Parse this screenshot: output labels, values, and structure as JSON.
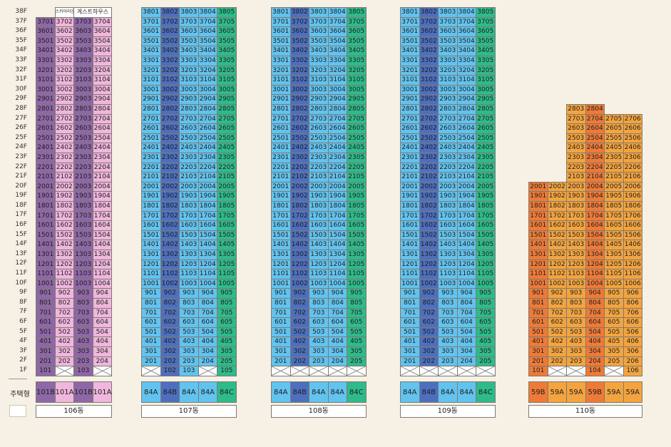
{
  "floor_labels": [
    "38F",
    "37F",
    "36F",
    "35F",
    "34F",
    "33F",
    "32F",
    "31F",
    "30F",
    "29F",
    "28F",
    "27F",
    "26F",
    "25F",
    "24F",
    "23F",
    "22F",
    "21F",
    "20F",
    "19F",
    "18F",
    "17F",
    "16F",
    "15F",
    "14F",
    "13F",
    "12F",
    "11F",
    "10F",
    "9F",
    "8F",
    "7F",
    "6F",
    "5F",
    "4F",
    "3F",
    "2F",
    "1F"
  ],
  "unit_type_label": "주택형",
  "colors": {
    "101B": "#8e67a6",
    "101A": "#f0b6dd",
    "84A": "#62c3ef",
    "84B": "#4d6fbe",
    "84C": "#2dbb8a",
    "59A": "#f3a43f",
    "59B": "#ee7a37",
    "empty": "#ffffff"
  },
  "buildings": [
    {
      "name": "106동",
      "left": 50,
      "units": [
        {
          "type": "101B",
          "top_floor": 37,
          "blank_floors": []
        },
        {
          "type": "101A",
          "top_floor": 37,
          "blank_floors": [
            1
          ]
        },
        {
          "type": "101B",
          "top_floor": 37,
          "blank_floors": []
        },
        {
          "type": "101A",
          "top_floor": 37,
          "blank_floors": [
            1
          ]
        }
      ],
      "annotations": [
        {
          "col": 1,
          "floor": 38,
          "text": "스카이라운지"
        },
        {
          "col": 2,
          "floor": 38,
          "span": 2,
          "text": "게스트하우스"
        }
      ],
      "types": [
        "101B",
        "101A",
        "101B",
        "101A"
      ]
    },
    {
      "name": "107동",
      "left": 198,
      "units": [
        {
          "type": "84A",
          "top_floor": 38,
          "blank_floors": [
            1
          ]
        },
        {
          "type": "84B",
          "top_floor": 38,
          "blank_floors": []
        },
        {
          "type": "84A",
          "top_floor": 38,
          "blank_floors": []
        },
        {
          "type": "84A",
          "top_floor": 38,
          "blank_floors": [
            1
          ]
        },
        {
          "type": "84C",
          "top_floor": 38,
          "blank_floors": []
        }
      ],
      "one_floor_mask": [
        false,
        true,
        true,
        false,
        true
      ],
      "types": [
        "84A",
        "84B",
        "84A",
        "84A",
        "84C"
      ]
    },
    {
      "name": "108동",
      "left": 380,
      "units": [
        {
          "type": "84A",
          "top_floor": 38,
          "blank_floors": [
            1
          ]
        },
        {
          "type": "84B",
          "top_floor": 38,
          "blank_floors": [
            1
          ]
        },
        {
          "type": "84A",
          "top_floor": 38,
          "blank_floors": [
            1
          ]
        },
        {
          "type": "84A",
          "top_floor": 38,
          "blank_floors": [
            1
          ]
        },
        {
          "type": "84C",
          "top_floor": 38,
          "blank_floors": [
            1
          ]
        }
      ],
      "types": [
        "84A",
        "84B",
        "84A",
        "84A",
        "84C"
      ]
    },
    {
      "name": "109동",
      "left": 561,
      "units": [
        {
          "type": "84A",
          "top_floor": 38,
          "blank_floors": [
            1
          ]
        },
        {
          "type": "84B",
          "top_floor": 38,
          "blank_floors": [
            1
          ]
        },
        {
          "type": "84A",
          "top_floor": 38,
          "blank_floors": [
            1
          ]
        },
        {
          "type": "84A",
          "top_floor": 38,
          "blank_floors": [
            1
          ]
        },
        {
          "type": "84C",
          "top_floor": 38,
          "blank_floors": [
            1
          ]
        }
      ],
      "types": [
        "84A",
        "84B",
        "84A",
        "84A",
        "84C"
      ]
    },
    {
      "name": "110동",
      "left": 741,
      "units": [
        {
          "type": "59B",
          "top_floor": 20,
          "blank_floors": []
        },
        {
          "type": "59A",
          "top_floor": 20,
          "blank_floors": [
            1
          ]
        },
        {
          "type": "59A",
          "top_floor": 28,
          "blank_floors": [
            1
          ]
        },
        {
          "type": "59B",
          "top_floor": 28,
          "blank_floors": []
        },
        {
          "type": "59A",
          "top_floor": 27,
          "blank_floors": [
            1
          ]
        },
        {
          "type": "59A",
          "top_floor": 27,
          "blank_floors": []
        }
      ],
      "types": [
        "59B",
        "59A",
        "59A",
        "59B",
        "59A",
        "59A"
      ]
    }
  ]
}
